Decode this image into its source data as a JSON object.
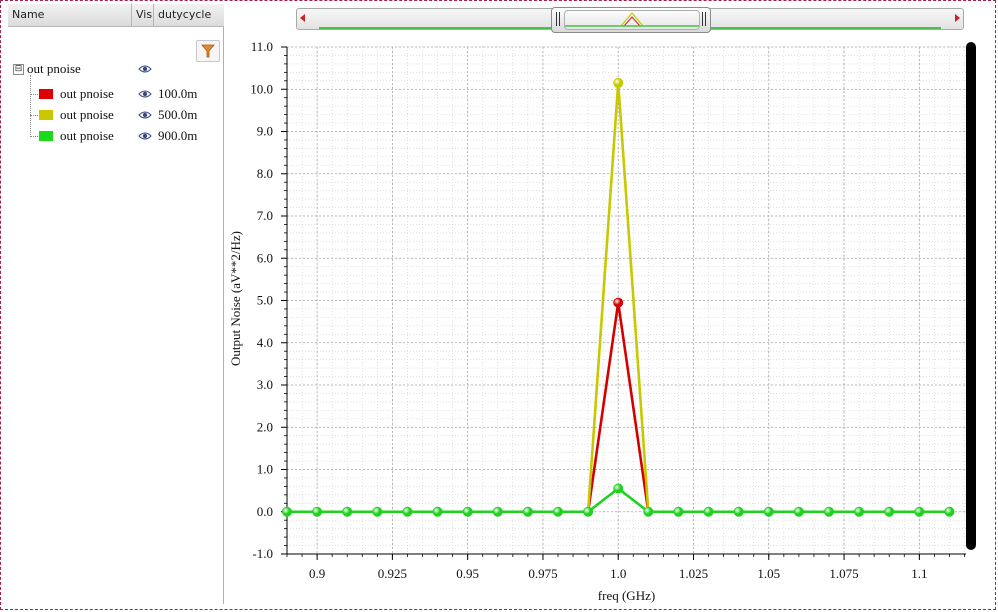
{
  "legend_panel": {
    "columns": [
      "Name",
      "Vis",
      "dutycycle"
    ],
    "group": {
      "label": "out pnoise",
      "expander": "⊟",
      "visibility_icon": "eye-icon"
    },
    "items": [
      {
        "label": "out pnoise",
        "color": "#e00000",
        "value": "100.0m",
        "visibility_icon": "eye-icon"
      },
      {
        "label": "out pnoise",
        "color": "#c8c800",
        "value": "500.0m",
        "visibility_icon": "eye-icon"
      },
      {
        "label": "out pnoise",
        "color": "#18dc18",
        "value": "900.0m",
        "visibility_icon": "eye-icon"
      }
    ],
    "filter_icon": "filter-icon"
  },
  "chart_data": {
    "type": "line",
    "xlabel": "freq (GHz)",
    "ylabel": "Output Noise (aV**2/Hz)",
    "xlim": [
      0.89,
      1.1155
    ],
    "ylim": [
      -1.0,
      11.0
    ],
    "x_ticks": [
      {
        "v": 0.9,
        "label": "0.9"
      },
      {
        "v": 0.925,
        "label": "0.925"
      },
      {
        "v": 0.95,
        "label": "0.95"
      },
      {
        "v": 0.975,
        "label": "0.975"
      },
      {
        "v": 1.0,
        "label": "1.0"
      },
      {
        "v": 1.025,
        "label": "1.025"
      },
      {
        "v": 1.05,
        "label": "1.05"
      },
      {
        "v": 1.075,
        "label": "1.075"
      },
      {
        "v": 1.1,
        "label": "1.1"
      }
    ],
    "y_ticks": [
      {
        "v": -1.0,
        "label": "-1.0"
      },
      {
        "v": 0.0,
        "label": "0.0"
      },
      {
        "v": 1.0,
        "label": "1.0"
      },
      {
        "v": 2.0,
        "label": "2.0"
      },
      {
        "v": 3.0,
        "label": "3.0"
      },
      {
        "v": 4.0,
        "label": "4.0"
      },
      {
        "v": 5.0,
        "label": "5.0"
      },
      {
        "v": 6.0,
        "label": "6.0"
      },
      {
        "v": 7.0,
        "label": "7.0"
      },
      {
        "v": 8.0,
        "label": "8.0"
      },
      {
        "v": 9.0,
        "label": "9.0"
      },
      {
        "v": 10.0,
        "label": "10.0"
      },
      {
        "v": 11.0,
        "label": "11.0"
      }
    ],
    "grid": true,
    "x": [
      0.89,
      0.9,
      0.91,
      0.92,
      0.93,
      0.94,
      0.95,
      0.96,
      0.97,
      0.98,
      0.99,
      1.0,
      1.01,
      1.02,
      1.03,
      1.04,
      1.05,
      1.06,
      1.07,
      1.08,
      1.09,
      1.1,
      1.11
    ],
    "series": [
      {
        "color": "#d40000",
        "values": [
          0,
          0,
          0,
          0,
          0,
          0,
          0,
          0,
          0,
          0,
          0,
          4.95,
          0,
          0,
          0,
          0,
          0,
          0,
          0,
          0,
          0,
          0,
          0
        ]
      },
      {
        "color": "#c8c800",
        "values": [
          0,
          0,
          0,
          0,
          0,
          0,
          0,
          0,
          0,
          0,
          0,
          10.15,
          0,
          0,
          0,
          0,
          0,
          0,
          0,
          0,
          0,
          0,
          0
        ]
      },
      {
        "color": "#1ed21e",
        "values": [
          0,
          0,
          0,
          0,
          0,
          0,
          0,
          0,
          0,
          0,
          0,
          0.55,
          0,
          0,
          0,
          0,
          0,
          0,
          0,
          0,
          0,
          0,
          0
        ]
      }
    ]
  }
}
